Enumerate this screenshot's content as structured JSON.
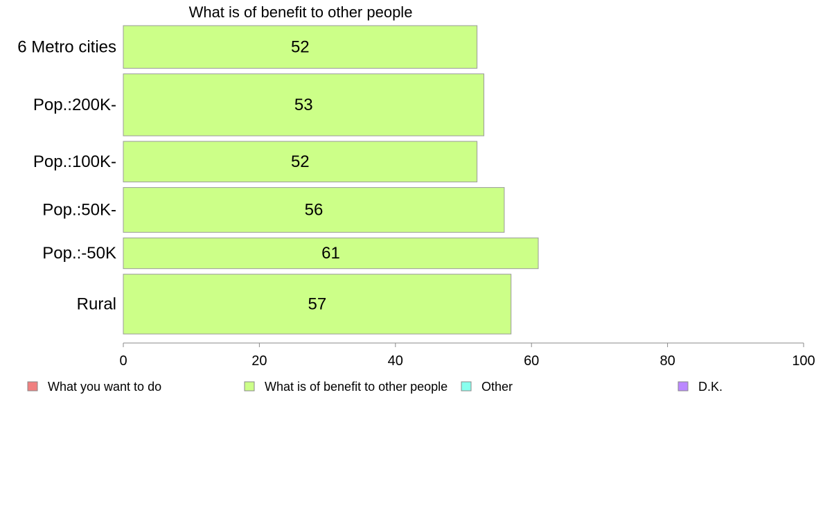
{
  "chart_data": {
    "type": "bar",
    "orientation": "horizontal",
    "title": "What is of benefit to other people",
    "categories": [
      "6 Metro cities",
      "Pop.:200K-",
      "Pop.:100K-",
      "Pop.:50K-",
      "Pop.:-50K",
      "Rural"
    ],
    "values": [
      52,
      53,
      52,
      56,
      61,
      57
    ],
    "value_labels": [
      "52",
      "53",
      "52",
      "56",
      "61",
      "57"
    ],
    "relative_widths": [
      1.0,
      1.45,
      0.95,
      1.05,
      0.72,
      1.4
    ],
    "xlim": [
      0,
      100
    ],
    "xticks": [
      "0",
      "20",
      "40",
      "60",
      "80",
      "100"
    ],
    "grid": false,
    "legend_placement": "bottom",
    "legend": [
      {
        "label": "What you want to do",
        "color": "#f08080"
      },
      {
        "label": "What is of benefit to other people",
        "color": "#ccff88"
      },
      {
        "label": "Other",
        "color": "#88ffee"
      },
      {
        "label": "D.K.",
        "color": "#bb88ff"
      }
    ],
    "bar_color": "#ccff88"
  }
}
